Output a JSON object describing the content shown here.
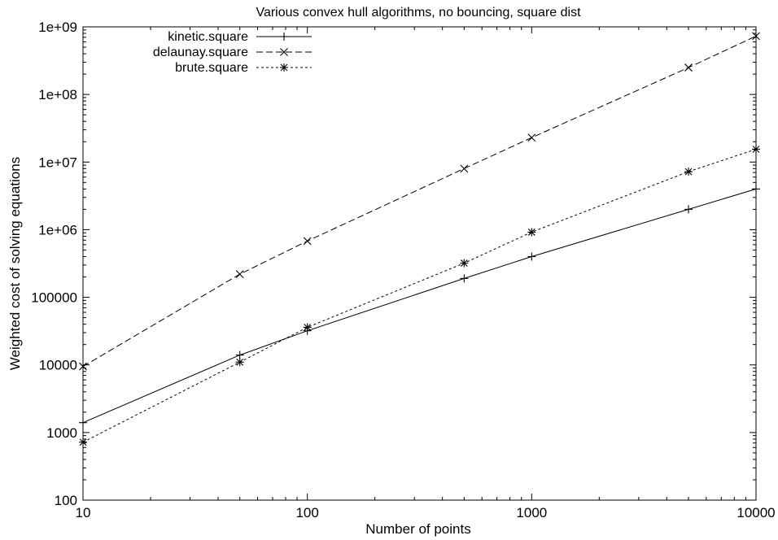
{
  "chart_data": {
    "type": "line",
    "title": "Various convex hull algorithms, no bouncing, square dist",
    "xlabel": "Number of points",
    "ylabel": "Weighted cost of solving equations",
    "xscale": "log",
    "yscale": "log",
    "xlim": [
      10,
      10000
    ],
    "ylim": [
      100,
      1000000000
    ],
    "xticks": [
      {
        "value": 10,
        "label": "10"
      },
      {
        "value": 100,
        "label": "100"
      },
      {
        "value": 1000,
        "label": "1000"
      },
      {
        "value": 10000,
        "label": "10000"
      }
    ],
    "yticks": [
      {
        "value": 100,
        "label": "100"
      },
      {
        "value": 1000,
        "label": "1000"
      },
      {
        "value": 10000,
        "label": "10000"
      },
      {
        "value": 100000,
        "label": "100000"
      },
      {
        "value": 1000000,
        "label": "1e+06"
      },
      {
        "value": 10000000,
        "label": "1e+07"
      },
      {
        "value": 100000000,
        "label": "1e+08"
      },
      {
        "value": 1000000000,
        "label": "1e+09"
      }
    ],
    "grid": false,
    "legend_position": "top-left",
    "series": [
      {
        "name": "kinetic.square",
        "marker": "plus",
        "dash": "solid",
        "x": [
          10,
          50,
          100,
          500,
          1000,
          5000,
          10000
        ],
        "y": [
          1400,
          14000,
          32000,
          190000,
          400000,
          2000000,
          4000000
        ]
      },
      {
        "name": "delaunay.square",
        "marker": "cross",
        "dash": "dashed",
        "x": [
          10,
          50,
          100,
          500,
          1000,
          5000,
          10000
        ],
        "y": [
          9500,
          220000,
          680000,
          8000000,
          23000000,
          250000000,
          730000000
        ]
      },
      {
        "name": "brute.square",
        "marker": "star",
        "dash": "dotted",
        "x": [
          10,
          50,
          100,
          500,
          1000,
          5000,
          10000
        ],
        "y": [
          720,
          11000,
          36000,
          320000,
          920000,
          7200000,
          15500000
        ]
      }
    ]
  }
}
